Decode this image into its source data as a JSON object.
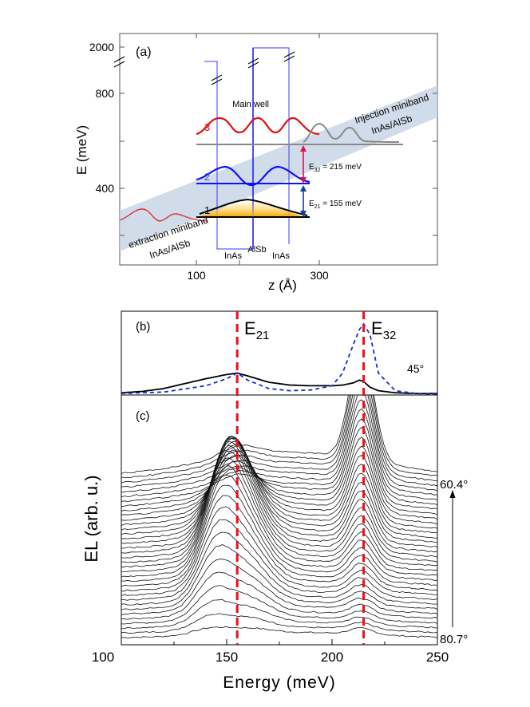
{
  "panel_a": {
    "label": "(a)",
    "y_axis_label": "E (meV)",
    "x_axis_label": "z (Å)",
    "y_ticks": [
      "400",
      "800",
      "2000"
    ],
    "x_ticks": [
      "100",
      "300"
    ],
    "main_well_label": "Main well",
    "injection_label_1": "Injection miniband",
    "injection_label_2": "InAs/AlSb",
    "extraction_label_1": "extraction miniband",
    "extraction_label_2": "InAs/AlSb",
    "layer_labels": [
      "InAs",
      "AlSb",
      "InAs"
    ],
    "level_labels": [
      "1",
      "2",
      "3"
    ],
    "e32_label": "E",
    "e32_sub": "32",
    "e32_value": " = 215 meV",
    "e21_label": "E",
    "e21_sub": "21",
    "e21_value": " = 155 meV"
  },
  "panel_b": {
    "label": "(b)",
    "angle_label": "45°",
    "e21_label": "E",
    "e21_sub": "21",
    "e32_label": "E",
    "e32_sub": "32"
  },
  "panel_c": {
    "label": "(c)",
    "y_axis_label": "EL (arb. u.)",
    "x_axis_label": "Energy (meV)",
    "x_ticks": [
      "100",
      "150",
      "200",
      "250"
    ],
    "angle_top": "60.4°",
    "angle_bottom": "80.7°"
  },
  "chart_data": [
    {
      "type": "line",
      "title": "(b)",
      "xlabel": "Energy (meV)",
      "ylabel": "EL",
      "xlim": [
        100,
        250
      ],
      "annotation": "45°",
      "markers": [
        {
          "name": "E21",
          "x": 155
        },
        {
          "name": "E32",
          "x": 215
        }
      ],
      "series": [
        {
          "name": "solid black",
          "x": [
            100,
            110,
            120,
            130,
            140,
            150,
            155,
            160,
            170,
            180,
            190,
            200,
            205,
            210,
            213,
            215,
            218,
            222,
            230,
            240,
            250
          ],
          "values": [
            0.02,
            0.04,
            0.08,
            0.15,
            0.22,
            0.28,
            0.3,
            0.26,
            0.17,
            0.13,
            0.12,
            0.12,
            0.13,
            0.16,
            0.2,
            0.18,
            0.1,
            0.05,
            0.02,
            0.01,
            0.01
          ]
        },
        {
          "name": "dashed blue",
          "x": [
            100,
            120,
            140,
            150,
            155,
            160,
            170,
            180,
            190,
            200,
            205,
            210,
            213,
            215,
            218,
            222,
            230,
            240,
            250
          ],
          "values": [
            0.01,
            0.03,
            0.12,
            0.22,
            0.3,
            0.2,
            0.08,
            0.05,
            0.06,
            0.12,
            0.3,
            0.7,
            0.92,
            1.0,
            0.85,
            0.3,
            0.05,
            0.01,
            0.0
          ]
        }
      ]
    },
    {
      "type": "line",
      "title": "(c)",
      "xlabel": "Energy (meV)",
      "ylabel": "EL (arb. u.)",
      "xlim": [
        100,
        250
      ],
      "x_ticks": [
        100,
        150,
        200,
        250
      ],
      "angle_range": [
        "60.4°",
        "80.7°"
      ],
      "markers": [
        {
          "name": "E21",
          "x": 155
        },
        {
          "name": "E32",
          "x": 215
        }
      ],
      "series": [
        {
          "name": "80.7°",
          "peaks": [
            {
              "x": 155,
              "height": 0.03
            },
            {
              "x": 215,
              "height": 0.05
            }
          ]
        },
        {
          "name": "intermediate",
          "peaks": [
            {
              "x": 142,
              "height": 0.55
            },
            {
              "x": 160,
              "height": 0.45
            },
            {
              "x": 215,
              "height": 0.6
            }
          ]
        },
        {
          "name": "60.4°",
          "peaks": [
            {
              "x": 155,
              "height": 0.2
            },
            {
              "x": 215,
              "height": 1.0
            }
          ]
        }
      ]
    }
  ]
}
